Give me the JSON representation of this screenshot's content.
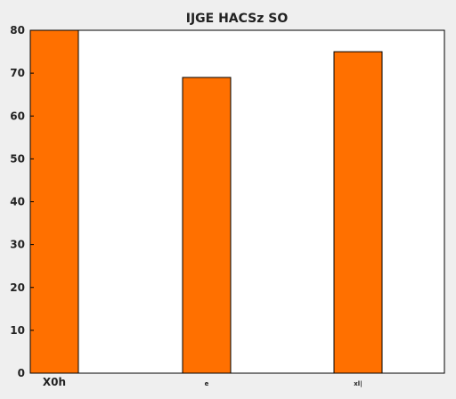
{
  "chart_data": {
    "type": "bar",
    "title": "IJGE HACSz SO",
    "xlabel": "",
    "ylabel": "",
    "categories": [
      "X0h",
      "e",
      "xl|"
    ],
    "values": [
      80,
      69,
      75
    ],
    "ylim": [
      0,
      80
    ],
    "yticks": [
      0,
      10,
      20,
      30,
      40,
      50,
      60,
      70,
      80
    ],
    "grid": false,
    "bar_color": "#ff7000",
    "bar_edge_color": "#000000"
  }
}
